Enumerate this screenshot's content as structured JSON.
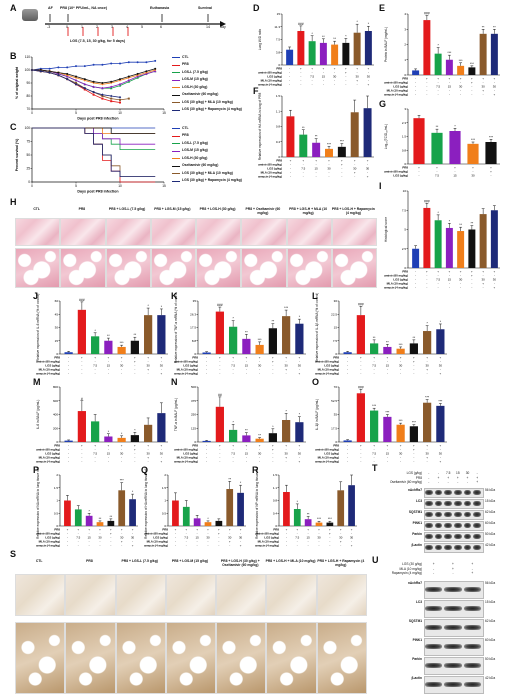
{
  "panels": {
    "A": "A",
    "B": "B",
    "C": "C",
    "D": "D",
    "E": "E",
    "F": "F",
    "G": "G",
    "H": "H",
    "I": "I",
    "J": "J",
    "K": "K",
    "L": "L",
    "M": "M",
    "N": "N",
    "O": "O",
    "P": "P",
    "Q": "Q",
    "R": "R",
    "S": "S",
    "T": "T",
    "U": "U"
  },
  "panelA": {
    "af": "AF",
    "pr8": "PR8 (10⁶ PFU/mL, NA once)",
    "euth": "Euthanasia",
    "surv": "Survival",
    "ticks": [
      "-3",
      "0",
      "1",
      "2",
      "3",
      "4",
      "5",
      "6",
      "14"
    ],
    "day": "day",
    "lgs": "LGS (7.5, 15, 30 g/kg, for 5 days)"
  },
  "legend_items": [
    {
      "label": "CTL",
      "color": "#1f3fb5"
    },
    {
      "label": "PR8",
      "color": "#e31a1c"
    },
    {
      "label": "LGS-L (7.5 g/kg)",
      "color": "#17a34a"
    },
    {
      "label": "LGS-M (15 g/kg)",
      "color": "#8b1fbf"
    },
    {
      "label": "LGS-H (30 g/kg)",
      "color": "#f07e1a"
    },
    {
      "label": "Oseltamivir (60 mg/kg)",
      "color": "#111111"
    },
    {
      "label": "LGS (30 g/kg) + MLA (10 mg/kg)",
      "color": "#8a5a2b"
    },
    {
      "label": "LGS (30 g/kg) + Rapamycin (4 mg/kg)",
      "color": "#1e2a78"
    }
  ],
  "bar_colors": [
    "#1f3fb5",
    "#e31a1c",
    "#17a34a",
    "#8b1fbf",
    "#f07e1a",
    "#111111",
    "#8a5a2b",
    "#1e2a78"
  ],
  "treat_labels": {
    "pr8": "PR8",
    "osel": "Oseltamivir (60 mg/kg)",
    "lgs": "LGS (g/kg)",
    "mla": "MLA (10 mg/kg)",
    "rapa": "Rapamycin (4 mg/kg)"
  },
  "treat_values": {
    "pr8": [
      "-",
      "+",
      "+",
      "+",
      "+",
      "+",
      "+",
      "+"
    ],
    "osel": [
      "-",
      "-",
      "-",
      "-",
      "-",
      "+",
      "-",
      "-"
    ],
    "lgs": [
      "-",
      "-",
      "7.5",
      "15",
      "30",
      "-",
      "30",
      "30"
    ],
    "mla": [
      "-",
      "-",
      "-",
      "-",
      "-",
      "-",
      "+",
      "-"
    ],
    "rapa": [
      "-",
      "-",
      "-",
      "-",
      "-",
      "-",
      "-",
      "+"
    ]
  },
  "axes": {
    "B_y": "% of original weight",
    "B_x": "Days post PR8 infection",
    "C_y": "Percent survival (%)",
    "C_x": "Days post PR8 infection",
    "D_y": "Lung W/D ratio",
    "E_y": "Protein in BALF (mg/mL)",
    "F_y": "Relative expression of HA mRNA in lung of PR8",
    "G_y": "Log₁₀(TCID₅₀/mL)",
    "I_y": "Histological score",
    "J_y": "Relative expression of IL-6 mRNA (% of control)",
    "K_y": "Relative expression of TNF-α mRNA (% of control)",
    "L_y": "Relative expression of IL-1β mRNA (% of control)",
    "M_y": "IL-6 in BALF (pg/mL)",
    "N_y": "TNF-α in BALF (pg/mL)",
    "O_y": "IL-1β in BALF (pg/mL)",
    "P_y": "Relative expression of NA mRNA in lung tissue of PR8",
    "Q_y": "Relative expression of HA mRNA in lung tissue of PR8",
    "R_y": "Relative expression of NP mRNA in lung tissue of PR8"
  },
  "H_labels": [
    "CTL",
    "PR8",
    "PR8 + LGS-L (7.5 g/kg)",
    "PR8 + LGS-M (15 g/kg)",
    "PR8 + LGS-H (30 g/kg)",
    "PR8 + Oseltamivir (60 mg/kg)",
    "PR8 + LGS-H + MLA (10 mg/kg)",
    "PR8 + LGS-H + Rapamycin (4 mg/kg)"
  ],
  "S_labels": [
    "CTL",
    "PR8",
    "PR8 + LGS-L (7.5 g/kg)",
    "PR8 + LGS-M (15 g/kg)",
    "PR8 + LGS-H (30 g/kg) + Oseltamivir (60 mg/kg)",
    "PR8 + LGS-H + MLA (10 mg/kg)",
    "PR8 + LGS-H + Rapamycin (4 mg/kg)"
  ],
  "T": {
    "hdr_rows": [
      {
        "label": "LGS (g/kg)",
        "vals": [
          "-",
          "-",
          "7.5",
          "15",
          "30",
          "-"
        ]
      },
      {
        "label": "PR8",
        "vals": [
          "-",
          "+",
          "+",
          "+",
          "+",
          "+"
        ]
      },
      {
        "label": "Oseltamivir (60 mg/kg)",
        "vals": [
          "-",
          "-",
          "-",
          "-",
          "-",
          "+"
        ]
      }
    ],
    "proteins": [
      {
        "name": "nAchRα7",
        "kda": "56 kDa"
      },
      {
        "name": "LC3",
        "kda": "15 kDa"
      },
      {
        "name": "SQSTM1",
        "kda": "62 kDa"
      },
      {
        "name": "PINK1",
        "kda": "60 kDa"
      },
      {
        "name": "Parkin",
        "kda": "50 kDa"
      },
      {
        "name": "β-actin",
        "kda": "42 kDa"
      }
    ]
  },
  "U": {
    "hdr_rows": [
      {
        "label": "LGS (30 g/kg)",
        "vals": [
          "+",
          "+",
          "+"
        ]
      },
      {
        "label": "MLA (10 mg/kg)",
        "vals": [
          "-",
          "+",
          "-"
        ]
      },
      {
        "label": "Rapamycin (4 mg/kg)",
        "vals": [
          "-",
          "-",
          "+"
        ]
      }
    ],
    "proteins": [
      {
        "name": "nAchRα7",
        "kda": "56 kDa"
      },
      {
        "name": "LC3",
        "kda": "15 kDa"
      },
      {
        "name": "SQSTM1",
        "kda": "62 kDa"
      },
      {
        "name": "PINK1",
        "kda": "60 kDa"
      },
      {
        "name": "Parkin",
        "kda": "50 kDa"
      },
      {
        "name": "β-actin",
        "kda": "42 kDa"
      }
    ]
  },
  "chart_data": [
    {
      "id": "B",
      "type": "line",
      "xlabel": "Days post PR8 infection",
      "ylabel": "% of original weight",
      "xlim": [
        0,
        15
      ],
      "ylim": [
        70,
        110
      ],
      "x": [
        0,
        1,
        2,
        3,
        4,
        5,
        6,
        7,
        8,
        9,
        10,
        11,
        12,
        13,
        14
      ],
      "series": [
        {
          "name": "CTL",
          "values": [
            100,
            101,
            101,
            102,
            102,
            103,
            103,
            104,
            104,
            105,
            105,
            106,
            106,
            106,
            107
          ]
        },
        {
          "name": "PR8",
          "values": [
            100,
            99,
            98,
            96,
            93,
            89,
            85,
            81,
            78,
            76,
            75,
            null,
            null,
            null,
            null
          ]
        },
        {
          "name": "LGS-L (7.5 g/kg)",
          "values": [
            100,
            100,
            99,
            97,
            95,
            92,
            89,
            87,
            86,
            86,
            88,
            91,
            94,
            97,
            99
          ]
        },
        {
          "name": "LGS-M (15 g/kg)",
          "values": [
            100,
            100,
            99,
            97,
            95,
            92,
            89,
            87,
            86,
            87,
            89,
            92,
            95,
            97,
            99
          ]
        },
        {
          "name": "LGS-H (30 g/kg)",
          "values": [
            100,
            100,
            99,
            98,
            96,
            94,
            92,
            90,
            89,
            90,
            92,
            94,
            96,
            98,
            100
          ]
        },
        {
          "name": "Oseltamivir (60 mg/kg)",
          "values": [
            100,
            100,
            99,
            98,
            97,
            95,
            93,
            91,
            90,
            91,
            93,
            95,
            97,
            99,
            101
          ]
        },
        {
          "name": "LGS (30 g/kg) + MLA (10 mg/kg)",
          "values": [
            100,
            99,
            98,
            96,
            93,
            90,
            86,
            83,
            80,
            78,
            77,
            78,
            null,
            null,
            null
          ]
        },
        {
          "name": "LGS (30 g/kg) + Rapamycin (4 mg/kg)",
          "values": [
            100,
            99,
            98,
            96,
            93,
            89,
            86,
            83,
            81,
            80,
            79,
            null,
            null,
            null,
            null
          ]
        }
      ]
    },
    {
      "id": "C",
      "type": "line",
      "xlabel": "Days post PR8 infection",
      "ylabel": "Percent survival (%)",
      "xlim": [
        0,
        15
      ],
      "ylim": [
        0,
        100
      ],
      "x": [
        0,
        1,
        2,
        3,
        4,
        5,
        6,
        7,
        8,
        9,
        10,
        11,
        12,
        13,
        14
      ],
      "series": [
        {
          "name": "CTL",
          "values": [
            100,
            100,
            100,
            100,
            100,
            100,
            100,
            100,
            100,
            100,
            100,
            100,
            100,
            100,
            100
          ]
        },
        {
          "name": "PR8",
          "values": [
            100,
            100,
            100,
            100,
            100,
            100,
            90,
            70,
            40,
            20,
            0,
            0,
            0,
            0,
            0
          ]
        },
        {
          "name": "LGS-L (7.5 g/kg)",
          "values": [
            100,
            100,
            100,
            100,
            100,
            100,
            100,
            90,
            80,
            70,
            60,
            60,
            60,
            60,
            60
          ]
        },
        {
          "name": "LGS-M (15 g/kg)",
          "values": [
            100,
            100,
            100,
            100,
            100,
            100,
            100,
            90,
            80,
            80,
            70,
            70,
            70,
            70,
            70
          ]
        },
        {
          "name": "LGS-H (30 g/kg)",
          "values": [
            100,
            100,
            100,
            100,
            100,
            100,
            100,
            100,
            90,
            90,
            90,
            90,
            90,
            90,
            90
          ]
        },
        {
          "name": "Oseltamivir (60 mg/kg)",
          "values": [
            100,
            100,
            100,
            100,
            100,
            100,
            100,
            100,
            100,
            90,
            90,
            90,
            90,
            90,
            90
          ]
        },
        {
          "name": "LGS (30 g/kg) + MLA (10 mg/kg)",
          "values": [
            100,
            100,
            100,
            100,
            100,
            100,
            90,
            70,
            50,
            30,
            10,
            10,
            10,
            10,
            10
          ]
        },
        {
          "name": "LGS (30 g/kg) + Rapamycin (4 mg/kg)",
          "values": [
            100,
            100,
            100,
            100,
            100,
            100,
            90,
            70,
            50,
            20,
            10,
            10,
            10,
            10,
            10
          ]
        }
      ]
    },
    {
      "id": "D",
      "type": "bar",
      "ylabel": "Lung W/D ratio",
      "ylim": [
        0,
        15
      ],
      "values": [
        4.5,
        10,
        7,
        6.5,
        6,
        6.5,
        9.5,
        10
      ],
      "errors": [
        0.8,
        1.5,
        1.6,
        1.2,
        1,
        1.3,
        2.5,
        1.4
      ],
      "sig": [
        "",
        "###",
        "*",
        "**",
        "**",
        "*",
        "*",
        "*"
      ]
    },
    {
      "id": "E",
      "type": "bar",
      "ylabel": "Protein in BALF (mg/mL)",
      "ylim": [
        0,
        4
      ],
      "values": [
        0.3,
        3.6,
        1.4,
        1.0,
        0.6,
        0.5,
        2.7,
        2.7
      ],
      "errors": [
        0.1,
        0.3,
        0.4,
        0.3,
        0.2,
        0.1,
        0.3,
        0.3
      ],
      "sig": [
        "",
        "###",
        "*",
        "***",
        "***",
        "***",
        "**",
        "**"
      ]
    },
    {
      "id": "F",
      "type": "bar",
      "ylabel": "Relative expression of HA mRNA in lung of PR8",
      "ylim": [
        0,
        1.5
      ],
      "values": [
        1.0,
        0.55,
        0.35,
        0.2,
        0.25,
        1.1,
        1.2
      ],
      "errors": [
        0.15,
        0.12,
        0.1,
        0.06,
        0.08,
        0.3,
        0.3
      ],
      "colors": [
        1,
        2,
        3,
        4,
        5,
        6,
        7
      ],
      "sig": [
        "",
        "**",
        "**",
        "***",
        "***",
        "",
        ""
      ]
    },
    {
      "id": "G",
      "type": "bar",
      "ylabel": "Log₁₀(TCID₅₀/mL)",
      "ylim": [
        0,
        3
      ],
      "values": [
        2.5,
        1.7,
        1.8,
        1.1,
        1.2
      ],
      "errors": [
        0.15,
        0.2,
        0.15,
        0.1,
        0.15
      ],
      "colors": [
        1,
        2,
        3,
        4,
        5
      ],
      "sig": [
        "",
        "**",
        "*",
        "***",
        "***"
      ]
    },
    {
      "id": "I",
      "type": "bar",
      "ylabel": "Histological score",
      "ylim": [
        0,
        10
      ],
      "values": [
        2.5,
        7.8,
        6.2,
        5.2,
        4.8,
        5.0,
        7.0,
        7.5
      ],
      "errors": [
        0.4,
        0.6,
        0.7,
        0.6,
        0.5,
        0.5,
        0.7,
        0.6
      ],
      "sig": [
        "",
        "###",
        "*",
        "*",
        "**",
        "**",
        "",
        ""
      ]
    },
    {
      "id": "J",
      "type": "bar",
      "ylabel": "Relative expression of IL-6 mRNA (% of control)",
      "ylim": [
        0,
        60
      ],
      "values": [
        2,
        50,
        20,
        15,
        8,
        15,
        44,
        44
      ],
      "errors": [
        1,
        9,
        4,
        3,
        2,
        4,
        8,
        7
      ],
      "sig": [
        "",
        "###",
        "*",
        "**",
        "***",
        "**",
        "*",
        "*"
      ]
    },
    {
      "id": "K",
      "type": "bar",
      "ylabel": "Relative expression of TNF-α mRNA (% of control)",
      "ylim": [
        0,
        35
      ],
      "values": [
        1,
        28,
        18,
        10,
        6,
        17,
        25,
        20
      ],
      "errors": [
        0.5,
        3,
        4,
        3,
        2,
        3,
        4,
        3
      ],
      "sig": [
        "",
        "###",
        "*",
        "**",
        "***",
        "**",
        "***",
        "*"
      ]
    },
    {
      "id": "L",
      "type": "bar",
      "ylabel": "Relative expression of IL-1β mRNA (% of control)",
      "ylim": [
        0,
        30
      ],
      "values": [
        1,
        22,
        6,
        4,
        3,
        6,
        13,
        14
      ],
      "errors": [
        0.5,
        5,
        2,
        1.5,
        1,
        2,
        3,
        3
      ],
      "sig": [
        "",
        "###",
        "**",
        "**",
        "***",
        "**",
        "*",
        "*"
      ]
    },
    {
      "id": "M",
      "type": "bar",
      "ylabel": "IL-6 in BALF (pg/mL)",
      "ylim": [
        0,
        800
      ],
      "values": [
        20,
        450,
        300,
        80,
        60,
        100,
        250,
        420
      ],
      "errors": [
        10,
        150,
        100,
        40,
        30,
        40,
        100,
        150
      ],
      "sig": [
        "",
        "#",
        "",
        "*",
        "*",
        "*",
        "",
        ""
      ]
    },
    {
      "id": "N",
      "type": "bar",
      "ylabel": "TNF-α in BALF (pg/mL)",
      "ylim": [
        0,
        500
      ],
      "values": [
        10,
        320,
        110,
        60,
        30,
        80,
        200,
        180
      ],
      "errors": [
        5,
        90,
        50,
        25,
        10,
        40,
        60,
        50
      ],
      "sig": [
        "",
        "##",
        "*",
        "**",
        "**",
        "*",
        "*",
        "*"
      ]
    },
    {
      "id": "O",
      "type": "bar",
      "ylabel": "IL-1β in BALF (pg/mL)",
      "ylim": [
        0,
        70
      ],
      "values": [
        2,
        62,
        40,
        32,
        22,
        20,
        50,
        46
      ],
      "errors": [
        1,
        5,
        3,
        3,
        2,
        2,
        4,
        3
      ],
      "sig": [
        "",
        "###",
        "***",
        "***",
        "***",
        "***",
        "***",
        "***"
      ]
    },
    {
      "id": "P",
      "type": "bar",
      "ylabel": "Relative expression of NA mRNA in lung tissue of PR8",
      "ylim": [
        0,
        2
      ],
      "values": [
        1.0,
        0.65,
        0.4,
        0.15,
        0.2,
        1.4,
        1.05
      ],
      "errors": [
        0.2,
        0.15,
        0.1,
        0.05,
        0.08,
        0.3,
        0.2
      ],
      "colors": [
        1,
        2,
        3,
        4,
        5,
        6,
        7
      ],
      "sig": [
        "",
        "",
        "*",
        "**",
        "**",
        "***",
        "*"
      ]
    },
    {
      "id": "Q",
      "type": "bar",
      "ylabel": "Relative expression of HA mRNA in lung tissue of PR8",
      "ylim": [
        0,
        2
      ],
      "values": [
        1.0,
        0.75,
        0.3,
        0.15,
        0.2,
        1.45,
        1.3
      ],
      "errors": [
        0.3,
        0.25,
        0.12,
        0.05,
        0.08,
        0.3,
        0.3
      ],
      "colors": [
        1,
        2,
        3,
        4,
        5,
        6,
        7
      ],
      "sig": [
        "",
        "",
        "",
        "*",
        "",
        "**",
        "*"
      ]
    },
    {
      "id": "R",
      "type": "bar",
      "ylabel": "Relative expression of NP mRNA in lung tissue of PR8",
      "ylim": [
        0,
        1.5
      ],
      "values": [
        1.0,
        0.5,
        0.2,
        0.1,
        0.1,
        1.05,
        1.2
      ],
      "errors": [
        0.2,
        0.15,
        0.08,
        0.04,
        0.04,
        0.25,
        0.3
      ],
      "colors": [
        1,
        2,
        3,
        4,
        5,
        6,
        7
      ],
      "sig": [
        "",
        "*",
        "**",
        "***",
        "***",
        "",
        ""
      ]
    }
  ]
}
